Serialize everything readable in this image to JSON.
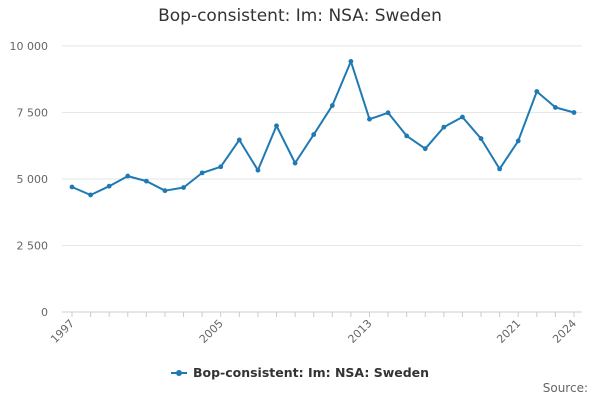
{
  "chart_data": {
    "type": "line",
    "title": "Bop-consistent: Im: NSA: Sweden",
    "xlabel": "",
    "ylabel": "",
    "x": [
      1997,
      1998,
      1999,
      2000,
      2001,
      2002,
      2003,
      2004,
      2005,
      2006,
      2007,
      2008,
      2009,
      2010,
      2011,
      2012,
      2013,
      2014,
      2015,
      2016,
      2017,
      2018,
      2019,
      2020,
      2021,
      2022,
      2023,
      2024
    ],
    "series": [
      {
        "name": "Bop-consistent: Im: NSA: Sweden",
        "color": "#1f7ab3",
        "values": [
          4700,
          4400,
          4730,
          5110,
          4920,
          4560,
          4680,
          5230,
          5460,
          6470,
          5330,
          7000,
          5600,
          6670,
          7760,
          9420,
          7250,
          7490,
          6620,
          6140,
          6950,
          7330,
          6520,
          5380,
          6430,
          8290,
          7690,
          7500
        ]
      }
    ],
    "xlim": [
      1997,
      2024
    ],
    "ylim": [
      0,
      10000
    ],
    "x_tick_labels": [
      "1997",
      "2005",
      "2013",
      "2021",
      "2024"
    ],
    "y_tick_labels": [
      "0",
      "2 500",
      "5 000",
      "7 500",
      "10 000"
    ],
    "legend_position": "bottom-center",
    "grid": true
  },
  "footer": {
    "source_label": "Source:"
  }
}
